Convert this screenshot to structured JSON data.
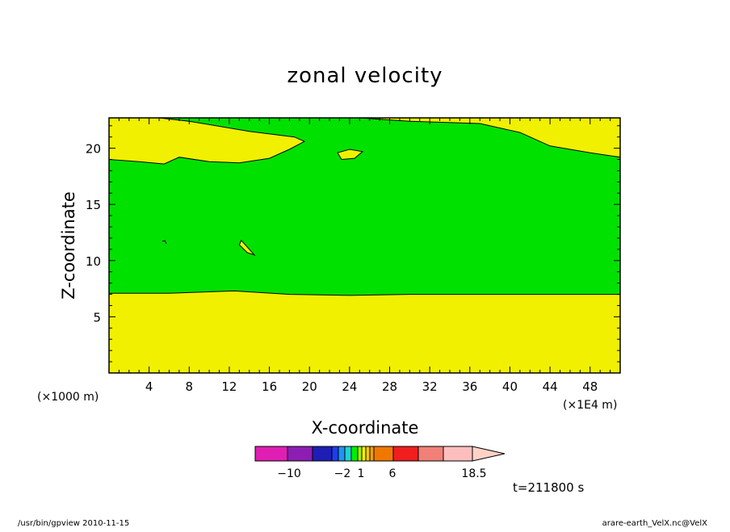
{
  "chart_data": {
    "type": "contour",
    "title": "zonal velocity",
    "xlabel": "X-coordinate",
    "ylabel": "Z-coordinate",
    "x_unit": "(×1E4 m)",
    "y_unit": "(×1000 m)",
    "xlim": [
      0,
      51
    ],
    "ylim": [
      0,
      22.7
    ],
    "xticks": [
      4,
      8,
      12,
      16,
      20,
      24,
      28,
      32,
      36,
      40,
      44,
      48
    ],
    "yticks": [
      5,
      10,
      15,
      20
    ],
    "time_label": "t=211800 s",
    "colorbar": {
      "colors": [
        "#e01eb4",
        "#8c1eb4",
        "#1e1eb4",
        "#1e3cf0",
        "#1e96f0",
        "#1ed2d2",
        "#00f000",
        "#a0f000",
        "#f0f000",
        "#f0c800",
        "#f0a000",
        "#f07800",
        "#f01e1e",
        "#f08078",
        "#ffbebe",
        "#ffd2c8"
      ],
      "tick_labels": [
        "−10",
        "−2",
        "1",
        "6",
        "18.5"
      ]
    },
    "regions": [
      {
        "level": "green",
        "color": "#00e100",
        "description_range": "between ~7 and ~19 km, and patches near top"
      },
      {
        "level": "yellow",
        "color": "#f0f000",
        "description_range": "below ~7 km and top layer"
      }
    ],
    "contours": {
      "lower_boundary": [
        [
          0,
          7.1
        ],
        [
          6,
          7.1
        ],
        [
          12.5,
          7.3
        ],
        [
          18,
          7.0
        ],
        [
          24,
          6.9
        ],
        [
          30,
          7.0
        ],
        [
          40,
          7.0
        ],
        [
          51,
          7.0
        ]
      ],
      "upper_boundary": [
        [
          0,
          19.0
        ],
        [
          3,
          18.8
        ],
        [
          5.5,
          18.6
        ],
        [
          7,
          19.2
        ],
        [
          10,
          18.8
        ],
        [
          13,
          18.7
        ],
        [
          16,
          19.1
        ],
        [
          18,
          19.9
        ],
        [
          19.5,
          20.6
        ],
        [
          18.5,
          21.0
        ],
        [
          14,
          21.5
        ],
        [
          8,
          22.4
        ],
        [
          5,
          22.7
        ]
      ],
      "top_boundary": [
        [
          25,
          22.7
        ],
        [
          30,
          22.4
        ],
        [
          37,
          22.2
        ],
        [
          41,
          21.4
        ],
        [
          44,
          20.2
        ],
        [
          48,
          19.6
        ],
        [
          51,
          19.2
        ]
      ],
      "island_yellow_1": [
        [
          22.8,
          19.6
        ],
        [
          24,
          19.9
        ],
        [
          25.3,
          19.7
        ],
        [
          24.5,
          19.1
        ],
        [
          23.2,
          19.0
        ]
      ],
      "island_yellow_2": [
        [
          13.2,
          11.8
        ],
        [
          14,
          11.0
        ],
        [
          14.5,
          10.5
        ],
        [
          13.8,
          10.7
        ],
        [
          13.0,
          11.4
        ]
      ]
    },
    "footer_left": "/usr/bin/gpview   2010-11-15",
    "footer_right": "arare-earth_VelX.nc@VelX"
  }
}
